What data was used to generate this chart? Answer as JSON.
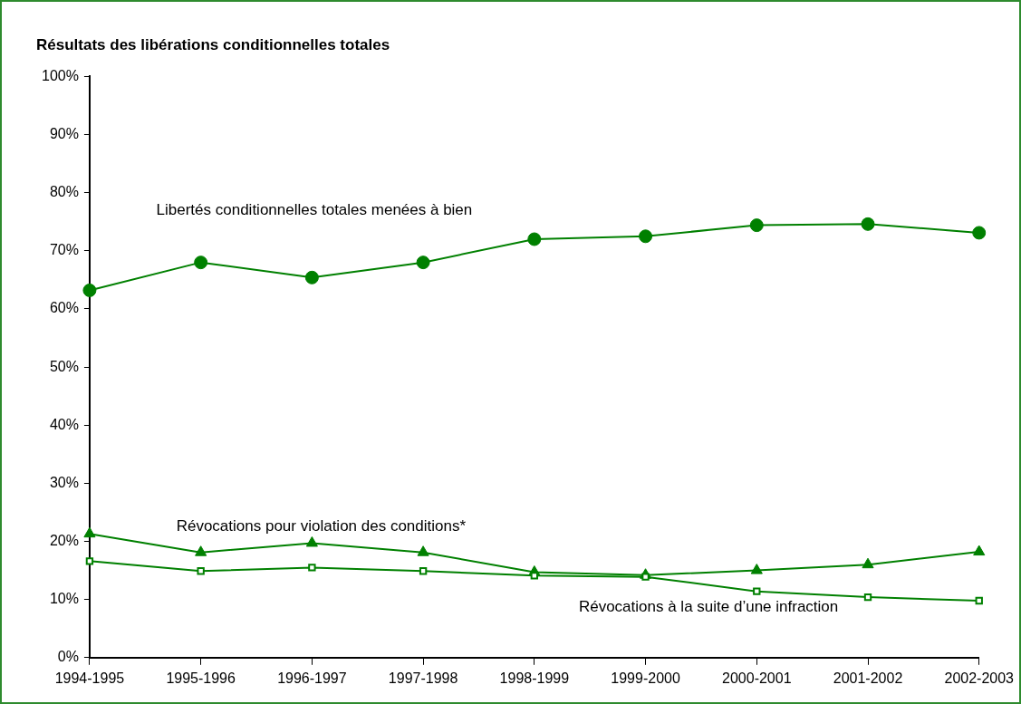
{
  "chart_data": {
    "type": "line",
    "title": "Résultats des libérations conditionnelles totales",
    "categories": [
      "1994-1995",
      "1995-1996",
      "1996-1997",
      "1997-1998",
      "1998-1999",
      "1999-2000",
      "2000-2001",
      "2001-2002",
      "2002-2003"
    ],
    "series": [
      {
        "name": "Libertés conditionnelles totales menées à bien",
        "color": "#008000",
        "marker": "circle",
        "values": [
          63.2,
          68,
          65.4,
          68,
          72,
          72.5,
          74.4,
          74.6,
          73.1
        ]
      },
      {
        "name": "Révocations pour violation des conditions*",
        "color": "#008000",
        "marker": "triangle",
        "values": [
          21.3,
          18.1,
          19.7,
          18.1,
          14.7,
          14.2,
          15,
          16,
          18.2
        ]
      },
      {
        "name": "Révocations à la suite d’une infraction",
        "color": "#008000",
        "marker": "square",
        "values": [
          16.6,
          14.9,
          15.5,
          14.9,
          14.1,
          13.9,
          11.4,
          10.4,
          9.8
        ]
      }
    ],
    "ylim": [
      0,
      100
    ],
    "yticks": [
      {
        "value": 0,
        "label": "0%"
      },
      {
        "value": 10,
        "label": "10%"
      },
      {
        "value": 20,
        "label": "20%"
      },
      {
        "value": 30,
        "label": "30%"
      },
      {
        "value": 40,
        "label": "40%"
      },
      {
        "value": 50,
        "label": "50%"
      },
      {
        "value": 60,
        "label": "60%"
      },
      {
        "value": 70,
        "label": "70%"
      },
      {
        "value": 80,
        "label": "80%"
      },
      {
        "value": 90,
        "label": "90%"
      },
      {
        "value": 100,
        "label": "100%"
      }
    ],
    "grid": false,
    "legend": false
  }
}
